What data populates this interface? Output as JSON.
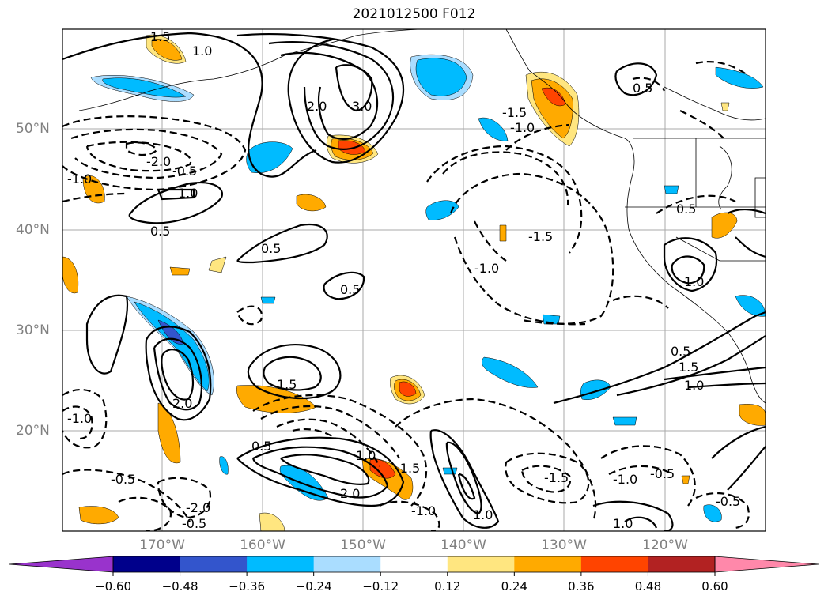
{
  "title": "2021012500 F012",
  "lat_labels": [
    "50°N",
    "40°N",
    "30°N",
    "20°N"
  ],
  "lon_labels": [
    "170°W",
    "160°W",
    "150°W",
    "140°W",
    "130°W",
    "120°W"
  ],
  "colorbar": {
    "ticks": [
      "−0.60",
      "−0.48",
      "−0.36",
      "−0.24",
      "−0.12",
      "0.12",
      "0.24",
      "0.36",
      "0.48",
      "0.60"
    ],
    "colors": [
      "#9933cc",
      "#00008b",
      "#3355cc",
      "#00bbff",
      "#aaddff",
      "#ffffff",
      "#ffe680",
      "#ffaa00",
      "#ff4400",
      "#b22222",
      "#ff88aa"
    ]
  },
  "contour_labels": [
    "1.5",
    "1.0",
    "2.0",
    "3.0",
    "0.5",
    "-1.5",
    "-1.0",
    "-2.0",
    "-0.5",
    "-1.0",
    "1.0",
    "0.5",
    "0.5",
    "0.5",
    "1.5",
    "2.0",
    "1.0",
    "-1.5",
    "-1.0",
    "-0.5",
    "-1.0",
    "-2.0",
    "-0.5",
    "1.0",
    "0.5",
    "1.5",
    "1.0",
    "0.5",
    "-0.5",
    "-1.0",
    "-1.5",
    "-0.5",
    "1.0",
    "2.0",
    "0.5",
    "1.0",
    "-1.0",
    "-1.5"
  ]
}
